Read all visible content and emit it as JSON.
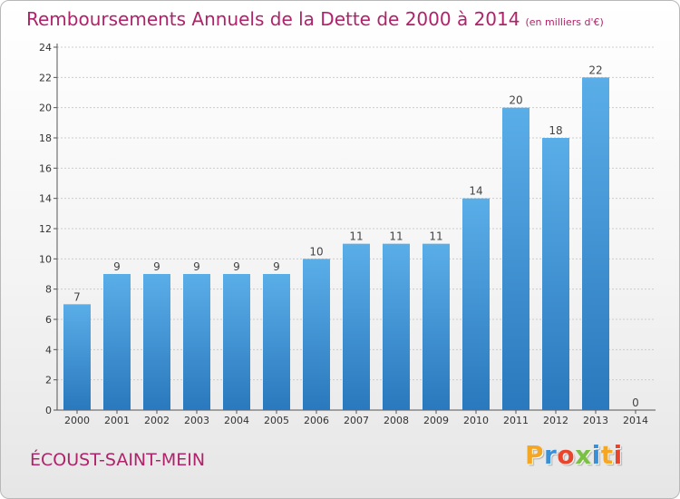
{
  "title": "Remboursements Annuels de la Dette de 2000 à 2014",
  "unit_note": "(en milliers d'€)",
  "city": "ÉCOUST-SAINT-MEIN",
  "brand": {
    "letters": [
      "P",
      "r",
      "o",
      "x",
      "i",
      "t",
      "i"
    ],
    "colors": [
      "#f5a623",
      "#3a8fd6",
      "#e8452c",
      "#7ac143",
      "#3a8fd6",
      "#f5a623",
      "#e8452c"
    ]
  },
  "colors": {
    "title": "#b0226a",
    "bar_top": "#5aaee8",
    "bar_bottom": "#2a78bd",
    "grid": "#cccccc"
  },
  "chart_data": {
    "type": "bar",
    "categories": [
      "2000",
      "2001",
      "2002",
      "2003",
      "2004",
      "2005",
      "2006",
      "2007",
      "2008",
      "2009",
      "2010",
      "2011",
      "2012",
      "2013",
      "2014"
    ],
    "values": [
      7,
      9,
      9,
      9,
      9,
      9,
      10,
      11,
      11,
      11,
      14,
      20,
      18,
      22,
      0
    ],
    "ylim": [
      0,
      24
    ],
    "yticks": [
      0,
      2,
      4,
      6,
      8,
      10,
      12,
      14,
      16,
      18,
      20,
      22,
      24
    ],
    "grid": true,
    "data_labels": true
  }
}
